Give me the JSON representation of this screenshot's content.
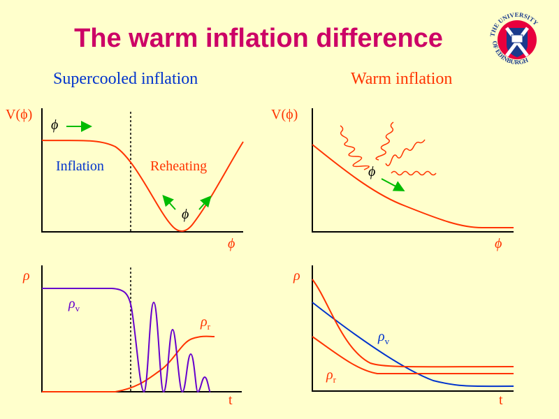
{
  "title": "The warm inflation difference",
  "logo": {
    "text": "THE UNIVERSITY OF EDINBURGH"
  },
  "left": {
    "subtitle": "Supercooled inflation",
    "potential": {
      "ylabel": "V(ϕ)",
      "xlabel": "ϕ",
      "field": "ϕ",
      "phase1": "Inflation",
      "phase2": "Reheating"
    },
    "energy": {
      "ylabel": "ρ",
      "xlabel": "t",
      "rho": "ρ",
      "v_sub": "v",
      "r_sub": "r"
    }
  },
  "right": {
    "subtitle": "Warm inflation",
    "potential": {
      "ylabel": "V(ϕ)",
      "xlabel": "ϕ",
      "field": "ϕ"
    },
    "energy": {
      "ylabel": "ρ",
      "xlabel": "t",
      "rho": "ρ",
      "v_sub": "v",
      "r_sub": "r"
    }
  },
  "colors": {
    "background": "#FFFFCC",
    "title": "#CC0066",
    "blue": "#0033CC",
    "red": "#FF3300",
    "green": "#00BB00",
    "purple": "#6600CC"
  }
}
